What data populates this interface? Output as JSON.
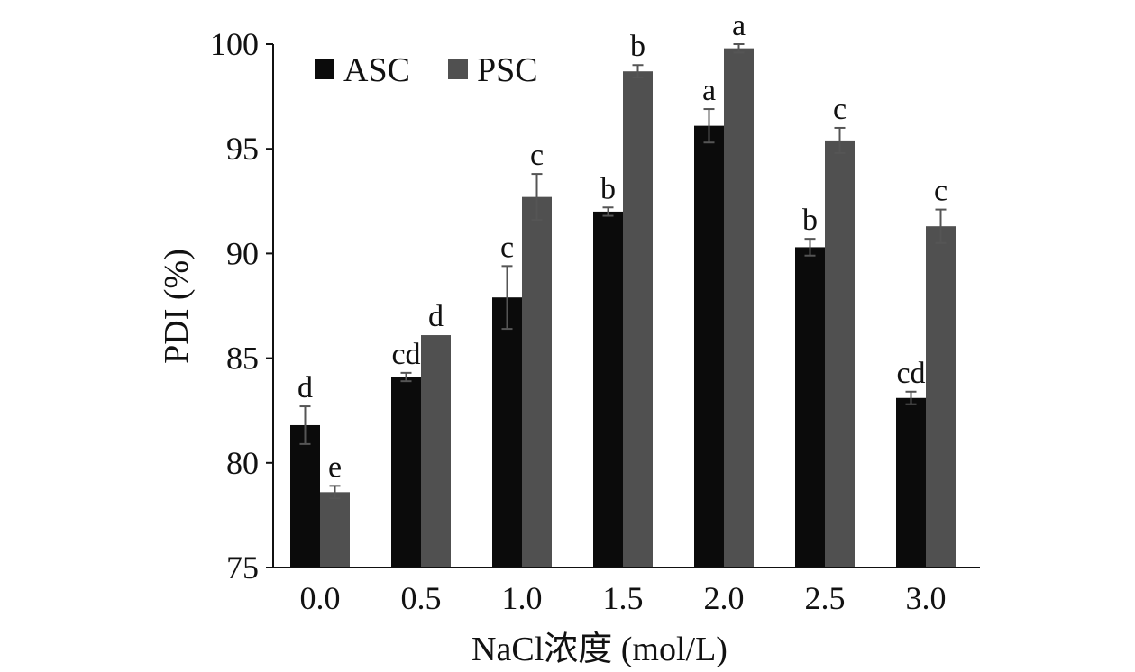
{
  "chart_data": {
    "type": "bar",
    "title": "",
    "xlabel": "NaCl浓度 (mol/L)",
    "ylabel": "PDI (%)",
    "ylim": [
      75,
      100
    ],
    "yticks": [
      75,
      80,
      85,
      90,
      95,
      100
    ],
    "categories": [
      "0.0",
      "0.5",
      "1.0",
      "1.5",
      "2.0",
      "2.5",
      "3.0"
    ],
    "series": [
      {
        "name": "ASC",
        "color": "#0b0b0b",
        "values": [
          81.8,
          84.1,
          87.9,
          92.0,
          96.1,
          90.3,
          83.1
        ],
        "errors": [
          0.9,
          0.2,
          1.5,
          0.2,
          0.8,
          0.4,
          0.3
        ],
        "labels": [
          "d",
          "cd",
          "c",
          "b",
          "a",
          "b",
          "cd"
        ]
      },
      {
        "name": "PSC",
        "color": "#505050",
        "values": [
          78.6,
          86.1,
          92.7,
          98.7,
          99.8,
          95.4,
          91.3
        ],
        "errors": [
          0.3,
          0.0,
          1.1,
          0.3,
          0.2,
          0.6,
          0.8
        ],
        "labels": [
          "e",
          "d",
          "c",
          "b",
          "a",
          "c",
          "c"
        ]
      }
    ],
    "legend_position": "top-left"
  }
}
